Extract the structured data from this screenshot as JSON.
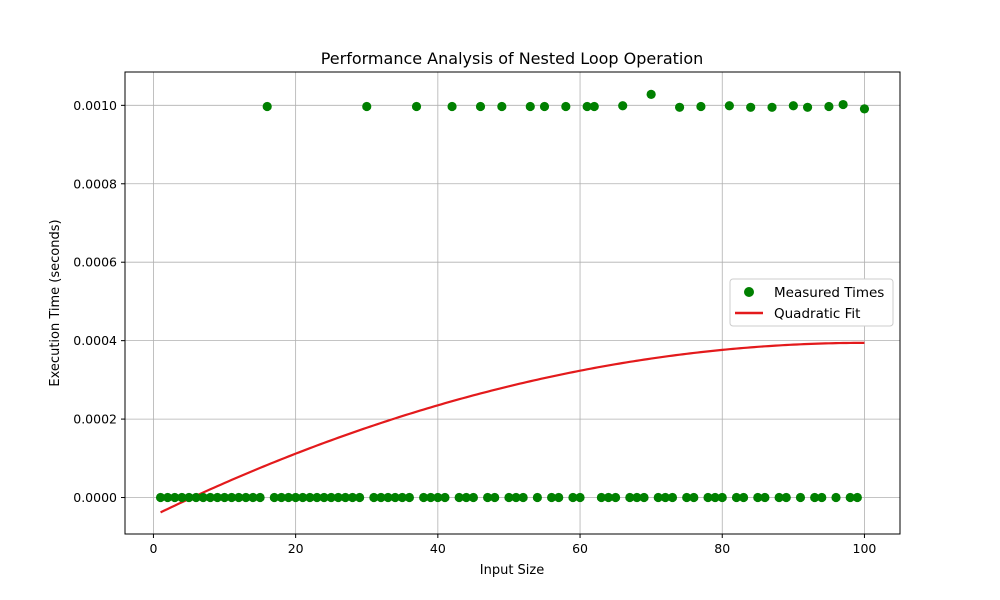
{
  "chart_data": {
    "type": "scatter",
    "title": "Performance Analysis of Nested Loop Operation",
    "xlabel": "Input Size",
    "ylabel": "Execution Time (seconds)",
    "xlim": [
      -4,
      105
    ],
    "ylim": [
      -9.3e-05,
      0.001085
    ],
    "xticks": [
      0,
      20,
      40,
      60,
      80,
      100
    ],
    "xtick_labels": [
      "0",
      "20",
      "40",
      "60",
      "80",
      "100"
    ],
    "yticks": [
      0.0,
      0.0002,
      0.0004,
      0.0006,
      0.0008,
      0.001
    ],
    "ytick_labels": [
      "0.0000",
      "0.0002",
      "0.0004",
      "0.0006",
      "0.0008",
      "0.0010"
    ],
    "grid": true,
    "legend_position": "center-right",
    "series": [
      {
        "name": "Measured Times",
        "kind": "scatter",
        "color": "#008000",
        "points": [
          [
            1,
            0
          ],
          [
            2,
            0
          ],
          [
            3,
            0
          ],
          [
            4,
            0
          ],
          [
            5,
            0
          ],
          [
            6,
            0
          ],
          [
            7,
            0
          ],
          [
            8,
            0
          ],
          [
            9,
            0
          ],
          [
            10,
            0
          ],
          [
            11,
            0
          ],
          [
            12,
            0
          ],
          [
            13,
            0
          ],
          [
            14,
            0
          ],
          [
            15,
            0
          ],
          [
            16,
            0.000997
          ],
          [
            17,
            0
          ],
          [
            18,
            0
          ],
          [
            19,
            0
          ],
          [
            20,
            0
          ],
          [
            21,
            0
          ],
          [
            22,
            0
          ],
          [
            23,
            0
          ],
          [
            24,
            0
          ],
          [
            25,
            0
          ],
          [
            26,
            0
          ],
          [
            27,
            0
          ],
          [
            28,
            0
          ],
          [
            29,
            0
          ],
          [
            30,
            0.000997
          ],
          [
            31,
            0
          ],
          [
            32,
            0
          ],
          [
            33,
            0
          ],
          [
            34,
            0
          ],
          [
            35,
            0
          ],
          [
            36,
            0
          ],
          [
            37,
            0.000997
          ],
          [
            38,
            0
          ],
          [
            39,
            0
          ],
          [
            40,
            0
          ],
          [
            41,
            0
          ],
          [
            42,
            0.000997
          ],
          [
            43,
            0
          ],
          [
            44,
            0
          ],
          [
            45,
            0
          ],
          [
            46,
            0.000997
          ],
          [
            47,
            0
          ],
          [
            48,
            0
          ],
          [
            49,
            0.000997
          ],
          [
            50,
            0
          ],
          [
            51,
            0
          ],
          [
            52,
            0
          ],
          [
            53,
            0.000997
          ],
          [
            54,
            0
          ],
          [
            55,
            0.000997
          ],
          [
            56,
            0
          ],
          [
            57,
            0
          ],
          [
            58,
            0.000997
          ],
          [
            59,
            0
          ],
          [
            60,
            0
          ],
          [
            61,
            0.000997
          ],
          [
            62,
            0.000997
          ],
          [
            63,
            0
          ],
          [
            64,
            0
          ],
          [
            65,
            0
          ],
          [
            66,
            0.000999
          ],
          [
            67,
            0
          ],
          [
            68,
            0
          ],
          [
            69,
            0
          ],
          [
            70,
            0.001028
          ],
          [
            71,
            0
          ],
          [
            72,
            0
          ],
          [
            73,
            0
          ],
          [
            74,
            0.000995
          ],
          [
            75,
            0
          ],
          [
            76,
            0
          ],
          [
            77,
            0.000997
          ],
          [
            78,
            0
          ],
          [
            79,
            0
          ],
          [
            80,
            0
          ],
          [
            81,
            0.000999
          ],
          [
            82,
            0
          ],
          [
            83,
            0
          ],
          [
            84,
            0.000995
          ],
          [
            85,
            0
          ],
          [
            86,
            0
          ],
          [
            87,
            0.000995
          ],
          [
            88,
            0
          ],
          [
            89,
            0
          ],
          [
            90,
            0.000999
          ],
          [
            91,
            0
          ],
          [
            92,
            0.000995
          ],
          [
            93,
            0
          ],
          [
            94,
            0
          ],
          [
            95,
            0.000997
          ],
          [
            96,
            0
          ],
          [
            97,
            0.001002
          ],
          [
            98,
            0
          ],
          [
            99,
            0
          ],
          [
            100,
            0.000991
          ]
        ]
      },
      {
        "name": "Quadratic Fit",
        "kind": "line",
        "color": "#e31a1c",
        "quadratic_coefficients": [
          -4.39e-08,
          8.8e-06,
          -4.66e-05
        ],
        "x_range": [
          1,
          100
        ]
      }
    ]
  }
}
